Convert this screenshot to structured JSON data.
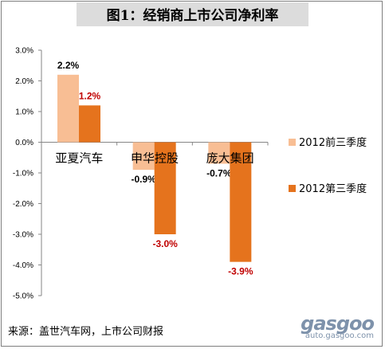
{
  "chart_data": {
    "type": "bar",
    "title": "图1：经销商上市公司净利率",
    "categories": [
      "亚夏汽车",
      "申华控股",
      "庞大集团"
    ],
    "series": [
      {
        "name": "2012前三季度",
        "values": [
          2.2,
          -0.9,
          -0.7
        ],
        "labels": [
          "2.2%",
          "-0.9%",
          "-0.7%"
        ],
        "color": "#f8be94",
        "label_color": "#000000"
      },
      {
        "name": "2012第三季度",
        "values": [
          1.2,
          -3.0,
          -3.9
        ],
        "labels": [
          "1.2%",
          "-3.0%",
          "-3.9%"
        ],
        "color": "#e5731d",
        "label_color": "#c00000"
      }
    ],
    "y_ticks": [
      "3.0%",
      "2.0%",
      "1.0%",
      "0.0%",
      "-1.0%",
      "-2.0%",
      "-3.0%",
      "-4.0%",
      "-5.0%"
    ],
    "ylim": [
      -5.0,
      3.0
    ],
    "legend_position": "right",
    "grid": false
  },
  "source_text": "来源：盖世汽车网，上市公司财报",
  "watermark": {
    "logo": "gasgoo",
    "url": "auto.gasgoo.com"
  }
}
